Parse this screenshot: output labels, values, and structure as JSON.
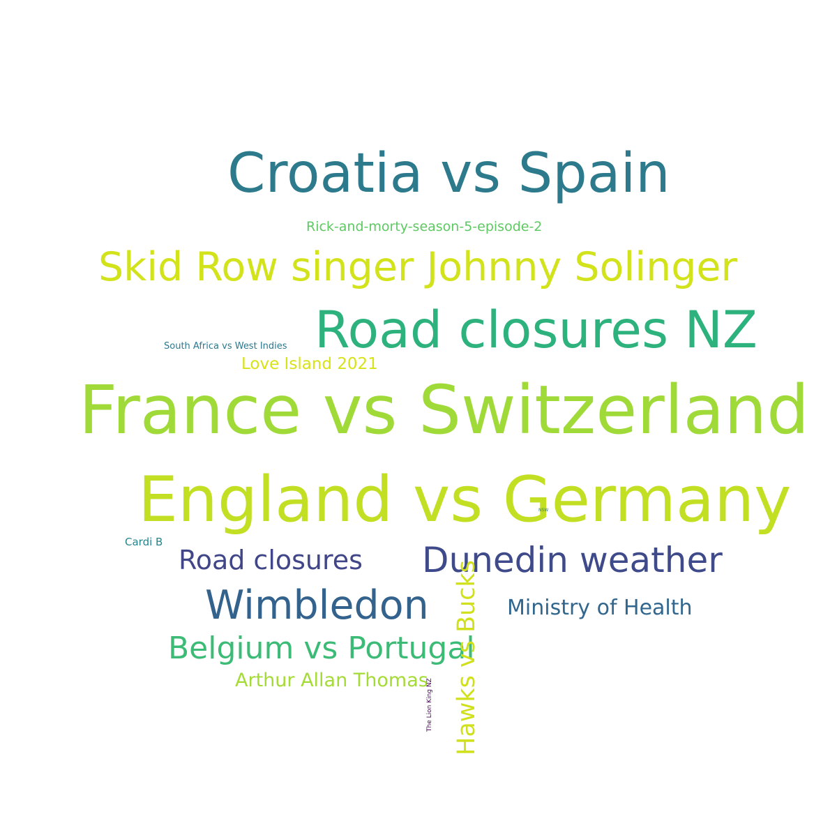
{
  "words": [
    {
      "id": "croatia-vs-spain",
      "text": "Croatia vs Spain",
      "color": "#2c7a8c",
      "orientation": "horizontal"
    },
    {
      "id": "rick-and-morty",
      "text": "Rick-and-morty-season-5-episode-2",
      "color": "#5ec962",
      "orientation": "horizontal"
    },
    {
      "id": "skid-row",
      "text": "Skid Row singer Johnny Solinger",
      "color": "#d2e21b",
      "orientation": "horizontal"
    },
    {
      "id": "road-closures-nz",
      "text": "Road closures NZ",
      "color": "#2db27d",
      "orientation": "horizontal"
    },
    {
      "id": "south-africa-vs-west-indies",
      "text": "South Africa vs West Indies",
      "color": "#2a788e",
      "orientation": "horizontal"
    },
    {
      "id": "love-island",
      "text": "Love Island 2021",
      "color": "#d8e219",
      "orientation": "horizontal"
    },
    {
      "id": "france-vs-switzerland",
      "text": "France vs Switzerland",
      "color": "#a0da39",
      "orientation": "horizontal"
    },
    {
      "id": "england-vs-germany",
      "text": "England vs Germany",
      "color": "#c2df23",
      "orientation": "horizontal"
    },
    {
      "id": "cardi-b",
      "text": "Cardi B",
      "color": "#25848e",
      "orientation": "horizontal"
    },
    {
      "id": "road-closures",
      "text": "Road closures",
      "color": "#404688",
      "orientation": "horizontal"
    },
    {
      "id": "dunedin-weather",
      "text": "Dunedin weather",
      "color": "#3e4a89",
      "orientation": "horizontal"
    },
    {
      "id": "wimbledon",
      "text": "Wimbledon",
      "color": "#33638d",
      "orientation": "horizontal"
    },
    {
      "id": "ministry-of-health",
      "text": "Ministry of Health",
      "color": "#31668e",
      "orientation": "horizontal"
    },
    {
      "id": "belgium-vs-portugal",
      "text": "Belgium vs Portugal",
      "color": "#3bbb75",
      "orientation": "horizontal"
    },
    {
      "id": "arthur-allan-thomas",
      "text": "Arthur Allan Thomas",
      "color": "#a5db36",
      "orientation": "horizontal"
    },
    {
      "id": "hawks-vs-bucks",
      "text": "Hawks vs Bucks",
      "color": "#d0e11c",
      "orientation": "vertical"
    },
    {
      "id": "the-lion-king-nz",
      "text": "The Lion King NZ",
      "color": "#440154",
      "orientation": "vertical"
    },
    {
      "id": "nsw",
      "text": "NSW",
      "color": "#2a788e",
      "orientation": "horizontal"
    }
  ]
}
